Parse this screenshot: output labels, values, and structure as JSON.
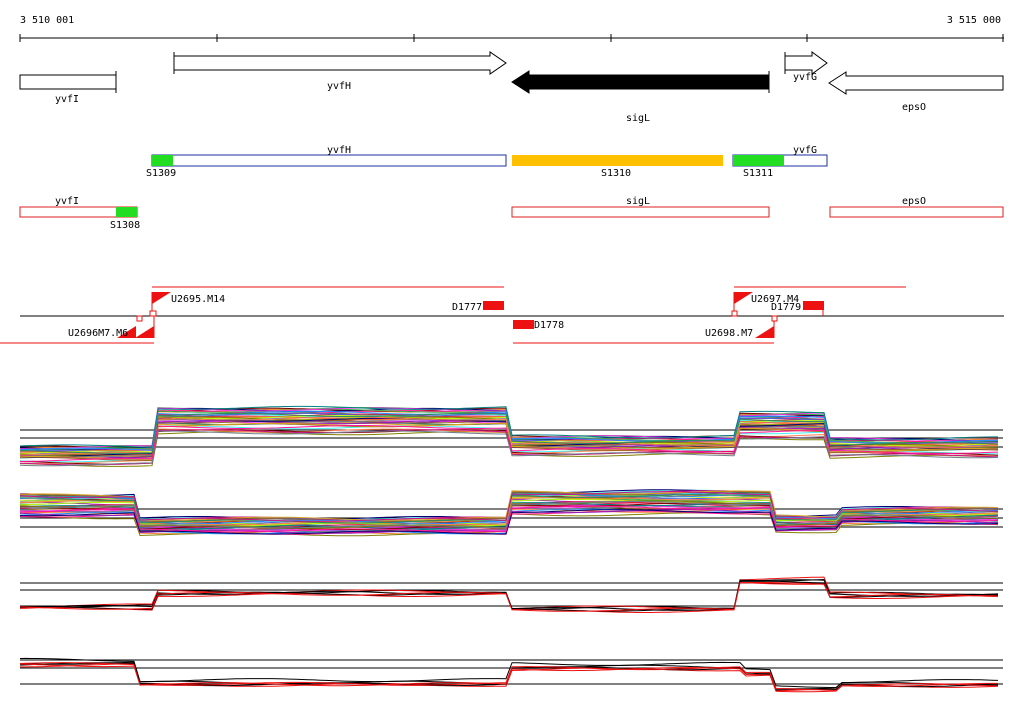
{
  "ruler": {
    "start_label": "3 510 001",
    "end_label": "3 515 000"
  },
  "genes": [
    {
      "name": "yvfI",
      "strand": "-",
      "style": "open"
    },
    {
      "name": "yvfH",
      "strand": "+",
      "style": "open"
    },
    {
      "name": "sigL",
      "strand": "-",
      "style": "filled"
    },
    {
      "name": "yvfG",
      "strand": "+",
      "style": "open"
    },
    {
      "name": "epsO",
      "strand": "-",
      "style": "open"
    }
  ],
  "plus_track": {
    "features": [
      {
        "label": "yvfH",
        "color": "#1f2f9f"
      },
      {
        "label": "yvfG",
        "color": "#1f2f9f"
      }
    ],
    "segments": [
      {
        "label": "S1309",
        "color": "#22dd22"
      },
      {
        "label": "S1310",
        "color": "#ffc000"
      },
      {
        "label": "S1311",
        "color": "#22dd22"
      }
    ]
  },
  "minus_track": {
    "features": [
      {
        "label": "yvfI",
        "color": "#dd2222"
      },
      {
        "label": "sigL",
        "color": "#dd2222"
      },
      {
        "label": "epsO",
        "color": "#dd2222"
      }
    ],
    "segments": [
      {
        "label": "S1308",
        "color": "#22dd22"
      }
    ]
  },
  "regulatory": {
    "upshifts": [
      "U2695.M14",
      "U2697.M4",
      "U2698.M7",
      "U2696.M6"
    ],
    "overlap_text": "U2696M7.M6",
    "downshifts": [
      "D1777",
      "D1778",
      "D1779"
    ],
    "color": "#ee1111"
  },
  "colors": {
    "gene_filled": "#000000",
    "axis": "#000000",
    "highlight": "#ee1111"
  }
}
